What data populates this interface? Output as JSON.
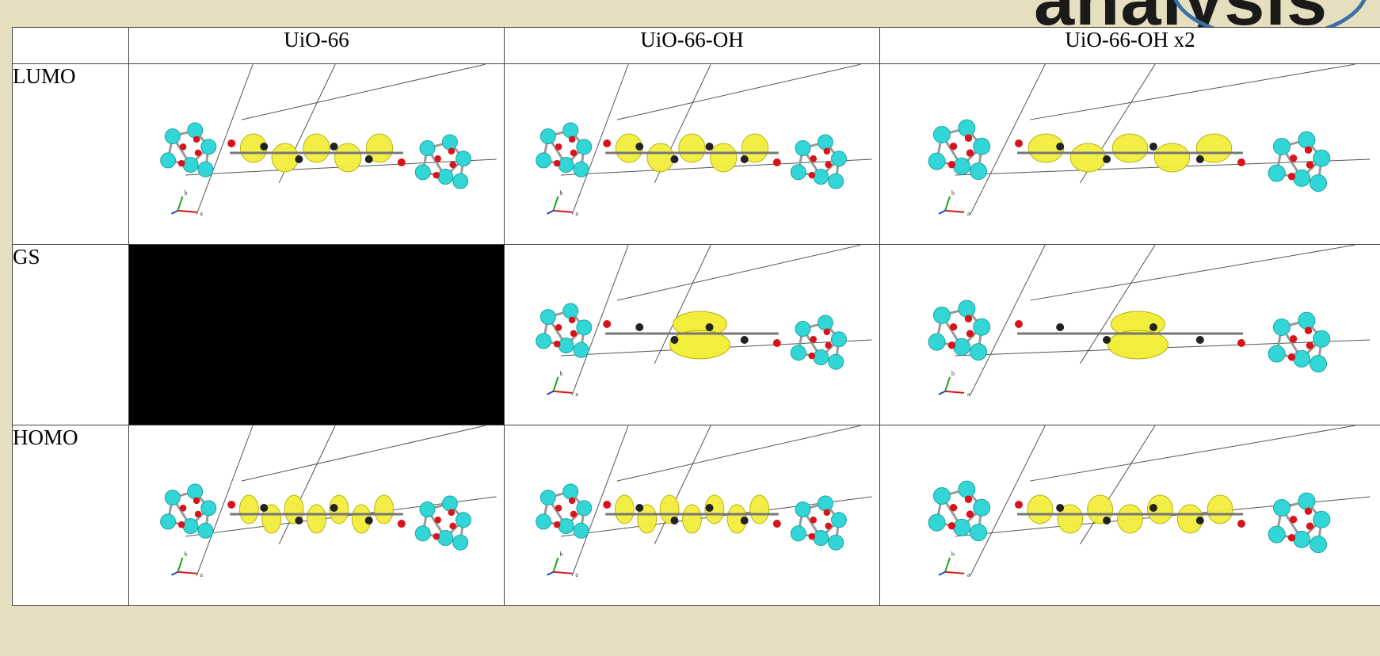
{
  "heading_fragment": "analysis",
  "table": {
    "columns": [
      "",
      "UiO-66",
      "UiO-66-OH",
      "UiO-66-OH x2"
    ],
    "rows": [
      {
        "label": "LUMO",
        "cells": [
          "UiO-66 LUMO isosurface",
          "UiO-66-OH LUMO isosurface",
          "UiO-66-OH x2 LUMO isosurface"
        ]
      },
      {
        "label": "GS",
        "cells": [
          "",
          "UiO-66-OH GS isosurface",
          "UiO-66-OH x2 GS isosurface"
        ]
      },
      {
        "label": "HOMO",
        "cells": [
          "UiO-66 HOMO isosurface",
          "UiO-66-OH HOMO isosurface",
          "UiO-66-OH x2 HOMO isosurface"
        ]
      }
    ]
  },
  "axis_labels": {
    "a": "a",
    "b": "b"
  },
  "colors": {
    "background": "#e6dfbf",
    "zr_atom": "#33d6d6",
    "oxygen_atom": "#d8141b",
    "carbon_atom": "#222222",
    "isosurface": "#f2ee3c"
  }
}
